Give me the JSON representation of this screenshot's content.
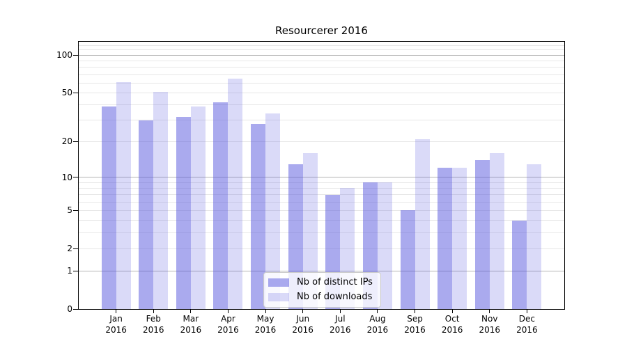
{
  "chart_data": {
    "type": "bar",
    "title": "Resourcerer 2016",
    "xlabel": "",
    "ylabel": "",
    "yscale": "log1p",
    "ylim": [
      0,
      128
    ],
    "y_ticks": [
      0,
      1,
      2,
      5,
      10,
      20,
      50,
      100
    ],
    "major_gridlines": [
      1,
      10,
      100
    ],
    "minor_gridlines": [
      2,
      3,
      4,
      5,
      6,
      7,
      8,
      9,
      20,
      30,
      40,
      50,
      60,
      70,
      80,
      90,
      110,
      120
    ],
    "grid": true,
    "legend_position": "lower center",
    "categories": [
      "Jan 2016",
      "Feb 2016",
      "Mar 2016",
      "Apr 2016",
      "May 2016",
      "Jun 2016",
      "Jul 2016",
      "Aug 2016",
      "Sep 2016",
      "Oct 2016",
      "Nov 2016",
      "Dec 2016"
    ],
    "series": [
      {
        "name": "Nb of distinct IPs",
        "color": "rgba(85,85,221,0.50)",
        "values": [
          39,
          30,
          32,
          42,
          28,
          13,
          7,
          9,
          5,
          12,
          14,
          4
        ]
      },
      {
        "name": "Nb of downloads",
        "color": "rgba(85,85,221,0.22)",
        "values": [
          61,
          51,
          39,
          65,
          34,
          16,
          8,
          9,
          21,
          12,
          16,
          13
        ]
      }
    ]
  },
  "colors": {
    "grid_major": "#b3b3b3",
    "grid_minor": "#e7e7e7",
    "axis": "#000000",
    "text": "#000000",
    "legend_border": "#cccccc",
    "legend_bg": "rgba(255,255,255,0.8)"
  }
}
